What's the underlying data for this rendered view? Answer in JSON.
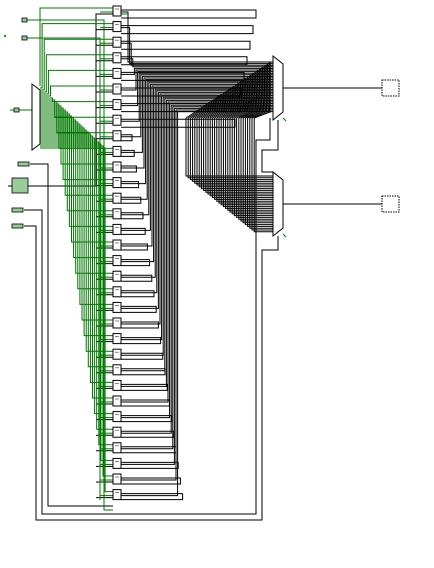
{
  "diagram": {
    "kind": "logic-circuit-schematic",
    "register_count": 32,
    "colors": {
      "background": "#ffffff",
      "wire": "#000000",
      "active_wire": "#007700",
      "pin_dot": "#00aa00",
      "component_fill": "#ffffff",
      "component_stroke": "#000000",
      "pin_fill": "#99cc99"
    },
    "components": {
      "inputs": [
        "clock-input-pin",
        "reset-input-pin",
        "write-enable-input-pin",
        "register-select-pin",
        "write-data-pin",
        "read-select-a-pin",
        "read-select-b-pin"
      ],
      "decoder": "write-decoder",
      "registers": "register-column",
      "multiplexers": [
        "read-mux-a",
        "read-mux-b"
      ],
      "outputs": [
        "read-data-a-output",
        "read-data-b-output"
      ]
    }
  }
}
